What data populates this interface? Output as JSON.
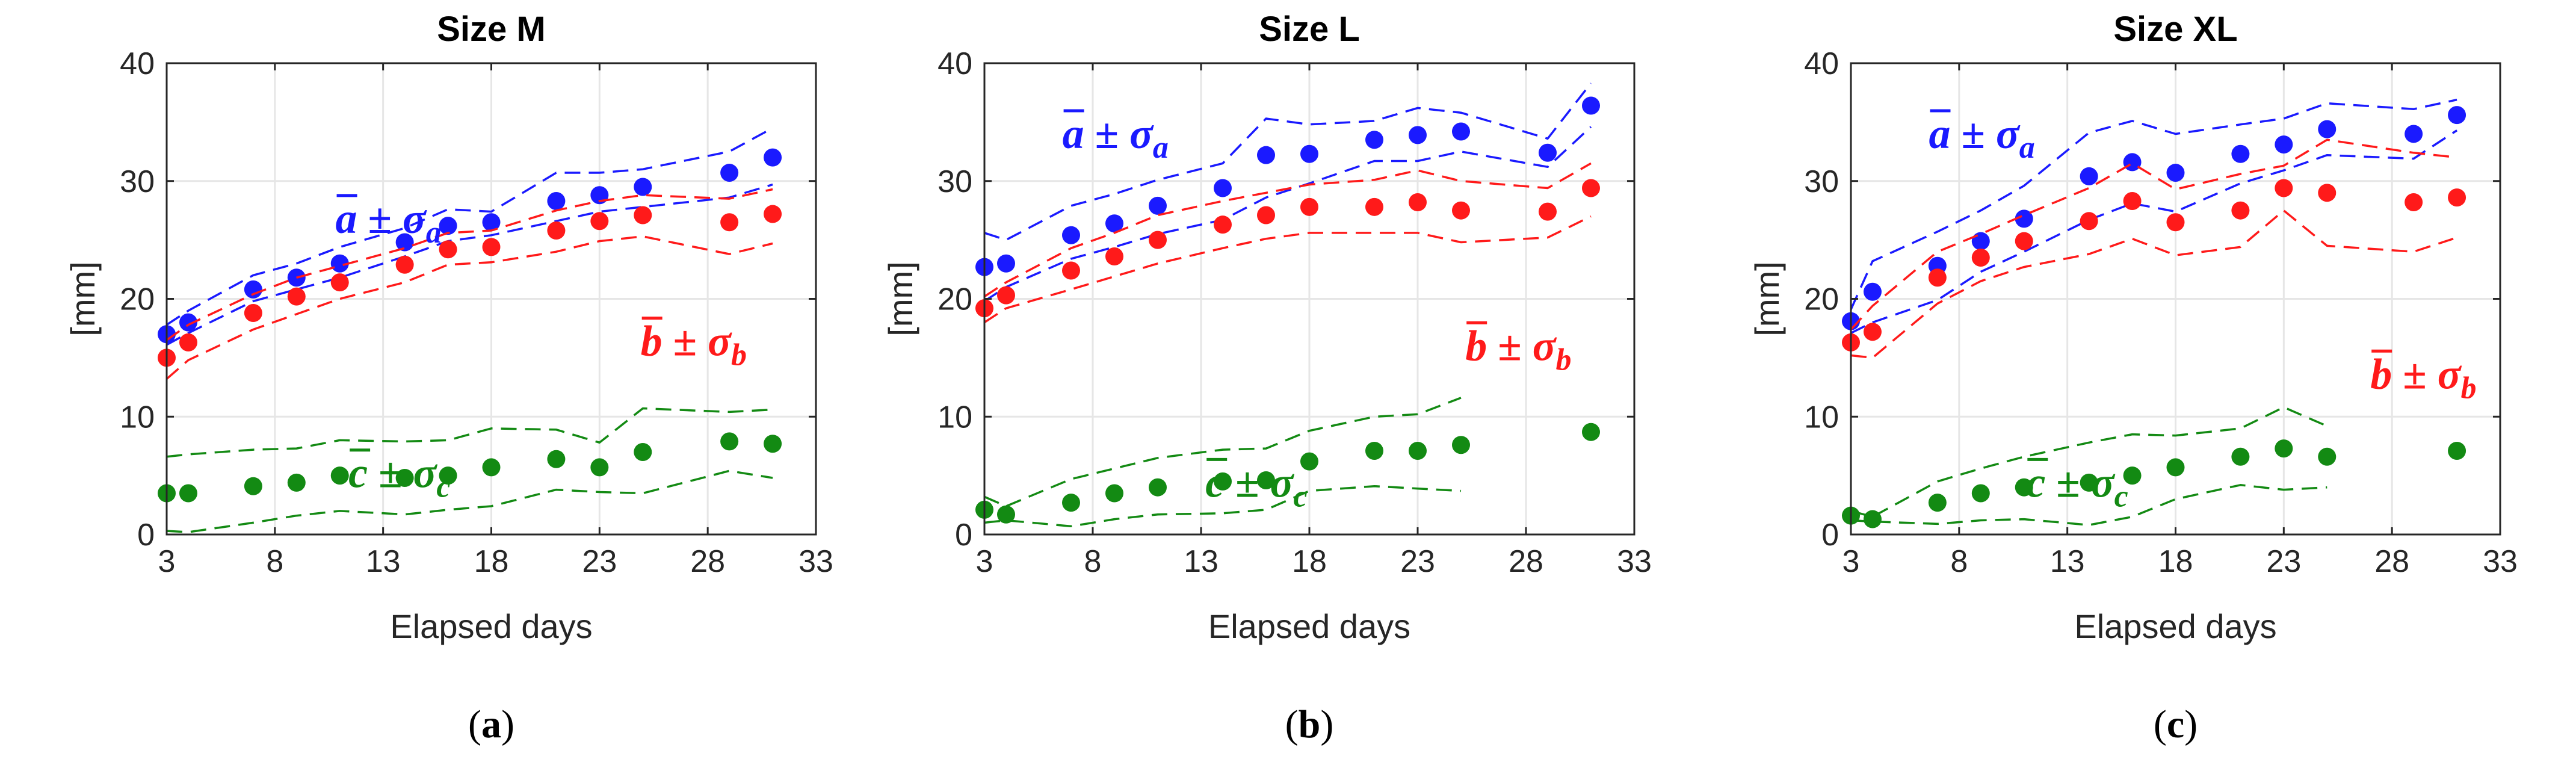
{
  "colors": {
    "a": "#1a1aff",
    "b": "#ff1a1a",
    "c": "#138a13",
    "grid": "#e6e6e6",
    "axis": "#262626"
  },
  "chart_data": [
    {
      "type": "scatter",
      "title": "Size M",
      "subfigure": {
        "open": "(",
        "letter": "a",
        "close": ")"
      },
      "xlabel": "Elapsed days",
      "ylabel": "[mm]",
      "xlim": [
        3,
        33
      ],
      "ylim": [
        0,
        40
      ],
      "xticks": [
        "3",
        "8",
        "13",
        "18",
        "23",
        "28",
        "33"
      ],
      "yticks": [
        "0",
        "10",
        "20",
        "30",
        "40"
      ],
      "grid": true,
      "annotations": [
        {
          "series": "a",
          "letter": "a",
          "op": "±",
          "sigma": "σ",
          "sub": "a"
        },
        {
          "series": "b",
          "letter": "b",
          "op": "±",
          "sigma": "σ",
          "sub": "b"
        },
        {
          "series": "c",
          "letter": "c",
          "op": "±",
          "sigma": "σ",
          "sub": "c"
        }
      ],
      "x": [
        3,
        4,
        7,
        9,
        11,
        14,
        16,
        18,
        21,
        23,
        25,
        29,
        31
      ],
      "series": [
        {
          "key": "a",
          "mean": [
            17.0,
            18.0,
            20.8,
            21.8,
            23.0,
            24.8,
            26.2,
            26.5,
            28.3,
            28.8,
            29.5,
            30.7,
            32.0
          ],
          "upper": [
            17.8,
            19.0,
            22.0,
            23.0,
            24.4,
            26.0,
            27.6,
            27.4,
            30.7,
            30.7,
            31.0,
            32.5,
            34.5
          ],
          "lower": [
            16.1,
            17.1,
            19.8,
            20.8,
            21.8,
            23.6,
            24.9,
            25.4,
            26.6,
            27.4,
            27.8,
            28.6,
            29.7
          ]
        },
        {
          "key": "b",
          "mean": [
            15.0,
            16.3,
            18.8,
            20.2,
            21.4,
            22.9,
            24.2,
            24.4,
            25.8,
            26.6,
            27.1,
            26.5,
            27.2
          ],
          "upper": [
            16.5,
            17.8,
            20.4,
            21.8,
            22.8,
            24.3,
            25.6,
            25.8,
            27.5,
            28.3,
            28.8,
            28.5,
            29.3
          ],
          "lower": [
            13.2,
            14.8,
            17.4,
            18.7,
            20.0,
            21.4,
            22.9,
            23.1,
            24.0,
            24.9,
            25.3,
            23.8,
            24.7
          ]
        },
        {
          "key": "c",
          "mean": [
            3.5,
            3.5,
            4.1,
            4.4,
            5.0,
            4.8,
            5.0,
            5.7,
            6.4,
            5.7,
            7.0,
            7.9,
            7.7
          ],
          "upper": [
            6.6,
            6.8,
            7.2,
            7.3,
            8.0,
            7.9,
            8.0,
            9.0,
            8.9,
            7.8,
            10.7,
            10.4,
            10.6
          ],
          "lower": [
            0.3,
            0.2,
            1.0,
            1.6,
            2.0,
            1.7,
            2.1,
            2.4,
            3.8,
            3.6,
            3.5,
            5.4,
            4.8
          ]
        }
      ]
    },
    {
      "type": "scatter",
      "title": "Size L",
      "subfigure": {
        "open": "(",
        "letter": "b",
        "close": ")"
      },
      "xlabel": "Elapsed days",
      "ylabel": "[mm]",
      "xlim": [
        3,
        33
      ],
      "ylim": [
        0,
        40
      ],
      "xticks": [
        "3",
        "8",
        "13",
        "18",
        "23",
        "28",
        "33"
      ],
      "yticks": [
        "0",
        "10",
        "20",
        "30",
        "40"
      ],
      "grid": true,
      "annotations": [
        {
          "series": "a",
          "letter": "a",
          "op": "±",
          "sigma": "σ",
          "sub": "a"
        },
        {
          "series": "b",
          "letter": "b",
          "op": "±",
          "sigma": "σ",
          "sub": "b"
        },
        {
          "series": "c",
          "letter": "c",
          "op": "±",
          "sigma": "σ",
          "sub": "c"
        }
      ],
      "x": [
        3,
        4,
        7,
        9,
        11,
        14,
        16,
        18,
        21,
        23,
        25,
        29,
        31
      ],
      "series": [
        {
          "key": "a",
          "mean": [
            22.7,
            23.0,
            25.4,
            26.4,
            27.9,
            29.4,
            32.2,
            32.3,
            33.5,
            33.9,
            34.2,
            32.4,
            36.4
          ],
          "upper": [
            25.6,
            25.0,
            27.9,
            28.9,
            30.1,
            31.5,
            35.3,
            34.8,
            35.1,
            36.2,
            35.8,
            33.6,
            38.3
          ],
          "lower": [
            19.8,
            21.0,
            23.4,
            24.4,
            25.5,
            26.7,
            28.6,
            29.8,
            31.7,
            31.7,
            32.5,
            31.2,
            34.6
          ]
        },
        {
          "key": "b",
          "mean": [
            19.2,
            20.3,
            22.4,
            23.6,
            25.0,
            26.3,
            27.1,
            27.8,
            27.8,
            28.2,
            27.5,
            27.4,
            29.4
          ],
          "upper": [
            20.2,
            21.4,
            24.3,
            25.6,
            27.1,
            28.3,
            29.0,
            29.7,
            30.1,
            30.9,
            30.0,
            29.4,
            31.5
          ],
          "lower": [
            18.0,
            19.2,
            20.8,
            21.9,
            23.0,
            24.3,
            25.1,
            25.6,
            25.6,
            25.6,
            24.8,
            25.2,
            27.0
          ]
        },
        {
          "key": "c",
          "mean": [
            2.1,
            1.7,
            2.7,
            3.5,
            4.0,
            4.5,
            4.6,
            6.2,
            7.1,
            7.1,
            7.6,
            null,
            8.7
          ],
          "upper": [
            3.2,
            2.4,
            4.7,
            5.6,
            6.5,
            7.2,
            7.3,
            8.8,
            10.0,
            10.2,
            11.6,
            null,
            null
          ],
          "lower": [
            1.0,
            1.2,
            0.7,
            1.3,
            1.7,
            1.8,
            2.1,
            3.7,
            4.1,
            3.9,
            3.7,
            null,
            null
          ]
        }
      ]
    },
    {
      "type": "scatter",
      "title": "Size XL",
      "subfigure": {
        "open": "(",
        "letter": "c",
        "close": ")"
      },
      "xlabel": "Elapsed days",
      "ylabel": "[mm]",
      "xlim": [
        3,
        33
      ],
      "ylim": [
        0,
        40
      ],
      "xticks": [
        "3",
        "8",
        "13",
        "18",
        "23",
        "28",
        "33"
      ],
      "yticks": [
        "0",
        "10",
        "20",
        "30",
        "40"
      ],
      "grid": true,
      "annotations": [
        {
          "series": "a",
          "letter": "a",
          "op": "±",
          "sigma": "σ",
          "sub": "a"
        },
        {
          "series": "b",
          "letter": "b",
          "op": "±",
          "sigma": "σ",
          "sub": "b"
        },
        {
          "series": "c",
          "letter": "c",
          "op": "±",
          "sigma": "σ",
          "sub": "c"
        }
      ],
      "x": [
        3,
        4,
        7,
        9,
        11,
        14,
        16,
        18,
        21,
        23,
        25,
        29,
        31
      ],
      "series": [
        {
          "key": "a",
          "mean": [
            18.1,
            20.6,
            22.8,
            24.9,
            26.8,
            30.4,
            31.6,
            30.7,
            32.3,
            33.1,
            34.4,
            34.0,
            35.6
          ],
          "upper": [
            19.1,
            23.2,
            25.7,
            27.5,
            29.6,
            34.1,
            35.1,
            34.0,
            34.8,
            35.3,
            36.6,
            36.1,
            36.9
          ],
          "lower": [
            17.1,
            18.0,
            19.9,
            22.3,
            24.0,
            26.7,
            28.1,
            27.4,
            29.8,
            30.9,
            32.2,
            31.9,
            34.3
          ]
        },
        {
          "key": "b",
          "mean": [
            16.3,
            17.2,
            21.8,
            23.5,
            24.9,
            26.6,
            28.3,
            26.5,
            27.5,
            29.4,
            29.0,
            28.2,
            28.6
          ],
          "upper": [
            17.4,
            19.4,
            24.0,
            25.5,
            27.1,
            29.4,
            31.5,
            29.3,
            30.6,
            31.3,
            33.5,
            32.4,
            32.0
          ],
          "lower": [
            15.2,
            15.0,
            19.6,
            21.5,
            22.7,
            23.8,
            25.1,
            23.7,
            24.4,
            27.5,
            24.5,
            24.0,
            25.2
          ]
        },
        {
          "key": "c",
          "mean": [
            1.6,
            1.3,
            2.7,
            3.5,
            4.0,
            4.4,
            5.0,
            5.7,
            6.6,
            7.3,
            6.6,
            null,
            7.1
          ],
          "upper": [
            2.0,
            1.5,
            4.5,
            5.6,
            6.6,
            7.8,
            8.5,
            8.4,
            9.0,
            10.8,
            9.2,
            null,
            null
          ],
          "lower": [
            1.2,
            1.1,
            0.9,
            1.2,
            1.3,
            0.8,
            1.5,
            3.0,
            4.2,
            3.8,
            4.0,
            null,
            null
          ]
        }
      ]
    }
  ]
}
